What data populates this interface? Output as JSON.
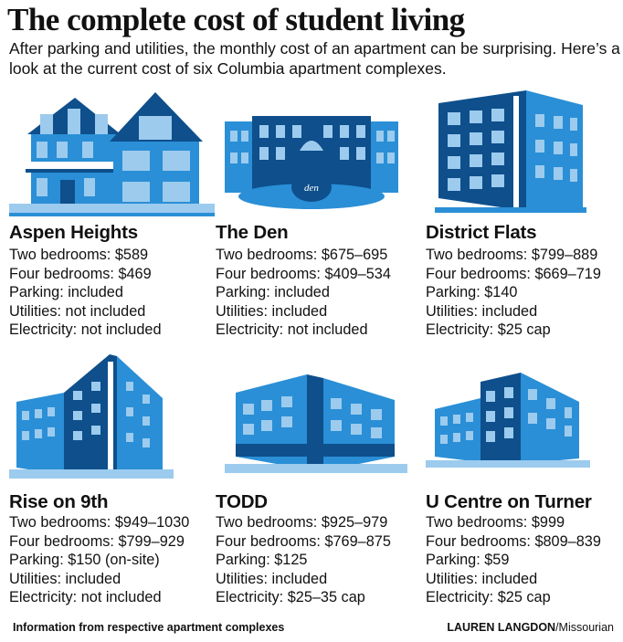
{
  "header": {
    "title": "The complete cost of student living",
    "subtitle": "After parking and utilities, the monthly cost of an apartment can be surprising. Here’s a look at the current cost of six Columbia apartment complexes."
  },
  "colors": {
    "illustration_blue": "#2a8fd6",
    "illustration_dark": "#0e4f8c",
    "illustration_light": "#9ccbee"
  },
  "complexes": [
    {
      "name": "Aspen Heights",
      "icon": "house-icon",
      "details": [
        "Two bedrooms: $589",
        "Four bedrooms: $469",
        "Parking: included",
        "Utilities: not included",
        "Electricity: not included"
      ]
    },
    {
      "name": "The Den",
      "icon": "courtyard-building-icon",
      "sign": "den",
      "details": [
        "Two bedrooms: $675–695",
        "Four bedrooms: $409–534",
        "Parking: included",
        "Utilities: included",
        "Electricity: not included"
      ]
    },
    {
      "name": "District Flats",
      "icon": "apartment-building-icon",
      "details": [
        "Two bedrooms: $799–889",
        "Four bedrooms: $669–719",
        "Parking: $140",
        "Utilities: included",
        "Electricity: $25 cap"
      ]
    },
    {
      "name": "Rise on 9th",
      "icon": "highrise-building-icon",
      "details": [
        "Two bedrooms: $949–1030",
        "Four bedrooms: $799–929",
        "Parking: $150 (on-site)",
        "Utilities: included",
        "Electricity: not included"
      ]
    },
    {
      "name": "TODD",
      "icon": "corner-building-icon",
      "details": [
        "Two bedrooms: $925–979",
        "Four bedrooms: $769–875",
        "Parking: $125",
        "Utilities: included",
        "Electricity: $25–35 cap"
      ]
    },
    {
      "name": "U Centre on Turner",
      "icon": "modern-building-icon",
      "details": [
        "Two bedrooms: $999",
        "Four bedrooms: $809–839",
        "Parking: $59",
        "Utilities: included",
        "Electricity: $25 cap"
      ]
    }
  ],
  "footer": {
    "source": "Information from respective apartment complexes",
    "author": "LAUREN LANGDON",
    "outlet": "/Missourian"
  }
}
